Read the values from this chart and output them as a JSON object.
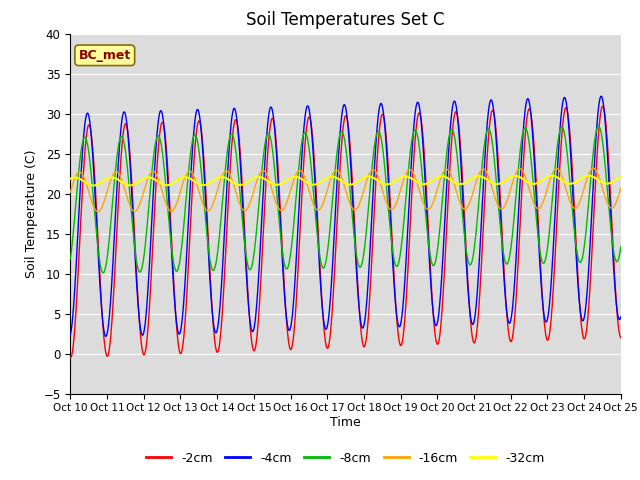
{
  "title": "Soil Temperatures Set C",
  "xlabel": "Time",
  "ylabel": "Soil Temperature (C)",
  "ylim": [
    -5,
    40
  ],
  "annotation": "BC_met",
  "annotation_color": "#8B0000",
  "annotation_bg": "#FFFF99",
  "bg_color": "#DCDCDC",
  "fig_bg": "#FFFFFF",
  "grid_color": "#FFFFFF",
  "colors": {
    "-2cm": "#FF0000",
    "-4cm": "#0000FF",
    "-8cm": "#00BB00",
    "-16cm": "#FFA500",
    "-32cm": "#FFFF00"
  },
  "tick_labels": [
    "Oct 10",
    "Oct 11",
    "Oct 12",
    "Oct 13",
    "Oct 14",
    "Oct 15",
    "Oct 16",
    "Oct 17",
    "Oct 18",
    "Oct 19",
    "Oct 20",
    "Oct 21",
    "Oct 22",
    "Oct 23",
    "Oct 24",
    "Oct 25"
  ],
  "yticks": [
    -5,
    0,
    5,
    10,
    15,
    20,
    25,
    30,
    35,
    40
  ]
}
